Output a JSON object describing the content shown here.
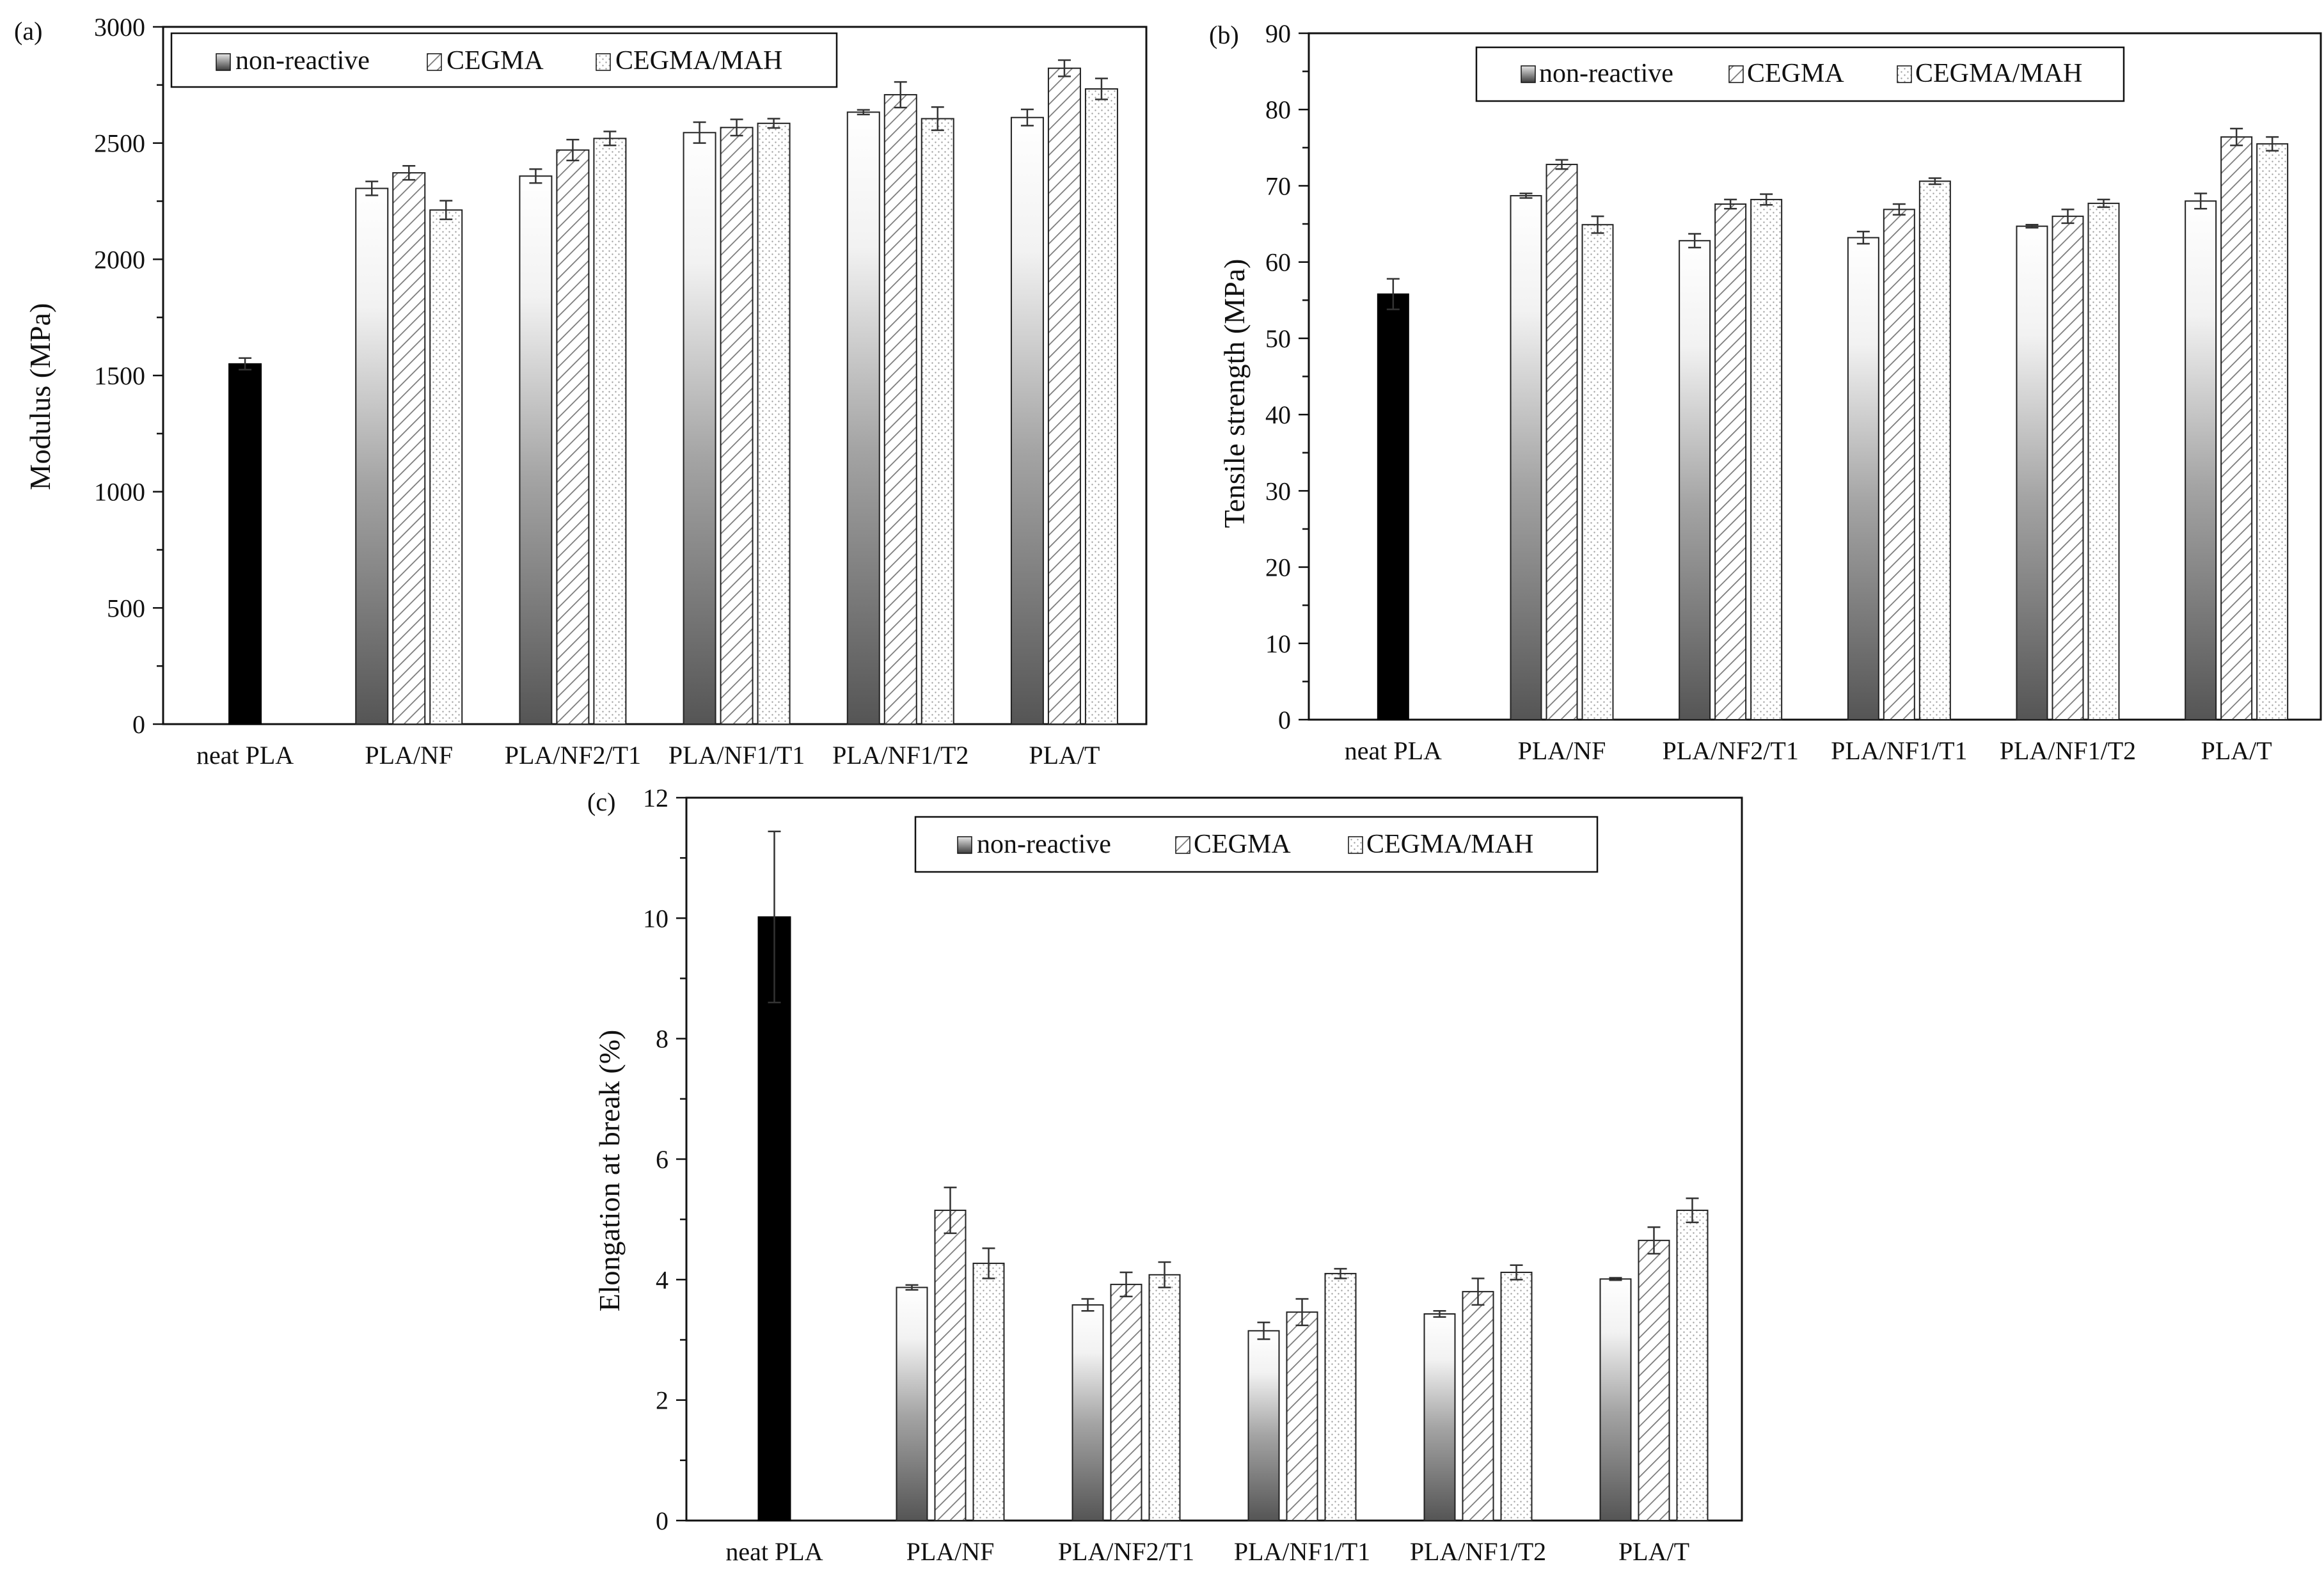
{
  "colors": {
    "neat": "#000000",
    "axis": "#111111",
    "hatch": "#777777",
    "dots": "#9a9a9a"
  },
  "legend": {
    "entries": [
      {
        "key": "non-reactive",
        "label": "non-reactive"
      },
      {
        "key": "cegma",
        "label": "CEGMA"
      },
      {
        "key": "cegma_mah",
        "label": "CEGMA/MAH"
      }
    ]
  },
  "chart_data": [
    {
      "id": "a",
      "panel_label": "(a)",
      "type": "bar",
      "ylabel": "Modulus (MPa)",
      "ylim": [
        0,
        3000
      ],
      "ytick_step": 500,
      "yticks": [
        "0",
        "500",
        "1000",
        "1500",
        "2000",
        "2500",
        "3000"
      ],
      "legend_position": "top-left",
      "categories": [
        "neat PLA",
        "PLA/NF",
        "PLA/NF2/T1",
        "PLA/NF1/T1",
        "PLA/NF1/T2",
        "PLA/T"
      ],
      "neat": {
        "value": 1550,
        "error": 25
      },
      "series": [
        {
          "name": "non-reactive",
          "values": [
            null,
            2305,
            2358,
            2545,
            2633,
            2610
          ],
          "errors": [
            null,
            30,
            30,
            45,
            10,
            35
          ]
        },
        {
          "name": "CEGMA",
          "values": [
            null,
            2372,
            2470,
            2567,
            2708,
            2822
          ],
          "errors": [
            null,
            30,
            45,
            35,
            55,
            35
          ]
        },
        {
          "name": "CEGMA/MAH",
          "values": [
            null,
            2212,
            2520,
            2585,
            2605,
            2733
          ],
          "errors": [
            null,
            40,
            30,
            20,
            50,
            45
          ]
        }
      ]
    },
    {
      "id": "b",
      "panel_label": "(b)",
      "type": "bar",
      "ylabel": "Tensile strength (MPa)",
      "ylim": [
        0,
        90
      ],
      "ytick_step": 10,
      "yticks": [
        "0",
        "10",
        "20",
        "30",
        "40",
        "50",
        "60",
        "70",
        "80",
        "90"
      ],
      "legend_position": "top-center",
      "categories": [
        "neat PLA",
        "PLA/NF",
        "PLA/NF2/T1",
        "PLA/NF1/T1",
        "PLA/NF1/T2",
        "PLA/T"
      ],
      "neat": {
        "value": 55.8,
        "error": 2.0
      },
      "series": [
        {
          "name": "non-reactive",
          "values": [
            null,
            68.7,
            62.8,
            63.2,
            64.7,
            68.0
          ],
          "errors": [
            null,
            0.3,
            0.9,
            0.8,
            0.2,
            1.0
          ]
        },
        {
          "name": "CEGMA",
          "values": [
            null,
            72.8,
            67.6,
            66.9,
            66.0,
            76.4
          ],
          "errors": [
            null,
            0.6,
            0.6,
            0.7,
            0.9,
            1.1
          ]
        },
        {
          "name": "CEGMA/MAH",
          "values": [
            null,
            64.9,
            68.2,
            70.6,
            67.7,
            75.5
          ],
          "errors": [
            null,
            1.1,
            0.7,
            0.4,
            0.5,
            0.9
          ]
        }
      ]
    },
    {
      "id": "c",
      "panel_label": "(c)",
      "type": "bar",
      "ylabel": "Elongation at break (%)",
      "ylim": [
        0,
        12
      ],
      "ytick_step": 2,
      "yticks": [
        "0",
        "2",
        "4",
        "6",
        "8",
        "10",
        "12"
      ],
      "legend_position": "top-center",
      "categories": [
        "neat PLA",
        "PLA/NF",
        "PLA/NF2/T1",
        "PLA/NF1/T1",
        "PLA/NF1/T2",
        "PLA/T"
      ],
      "neat": {
        "value": 10.02,
        "error": 1.42
      },
      "series": [
        {
          "name": "non-reactive",
          "values": [
            null,
            3.87,
            3.58,
            3.15,
            3.43,
            4.01
          ],
          "errors": [
            null,
            0.04,
            0.1,
            0.14,
            0.05,
            0.02
          ]
        },
        {
          "name": "CEGMA",
          "values": [
            null,
            5.15,
            3.92,
            3.46,
            3.8,
            4.65
          ],
          "errors": [
            null,
            0.38,
            0.2,
            0.22,
            0.22,
            0.22
          ]
        },
        {
          "name": "CEGMA/MAH",
          "values": [
            null,
            4.27,
            4.08,
            4.1,
            4.12,
            5.15
          ],
          "errors": [
            null,
            0.25,
            0.21,
            0.08,
            0.12,
            0.2
          ]
        }
      ]
    }
  ]
}
